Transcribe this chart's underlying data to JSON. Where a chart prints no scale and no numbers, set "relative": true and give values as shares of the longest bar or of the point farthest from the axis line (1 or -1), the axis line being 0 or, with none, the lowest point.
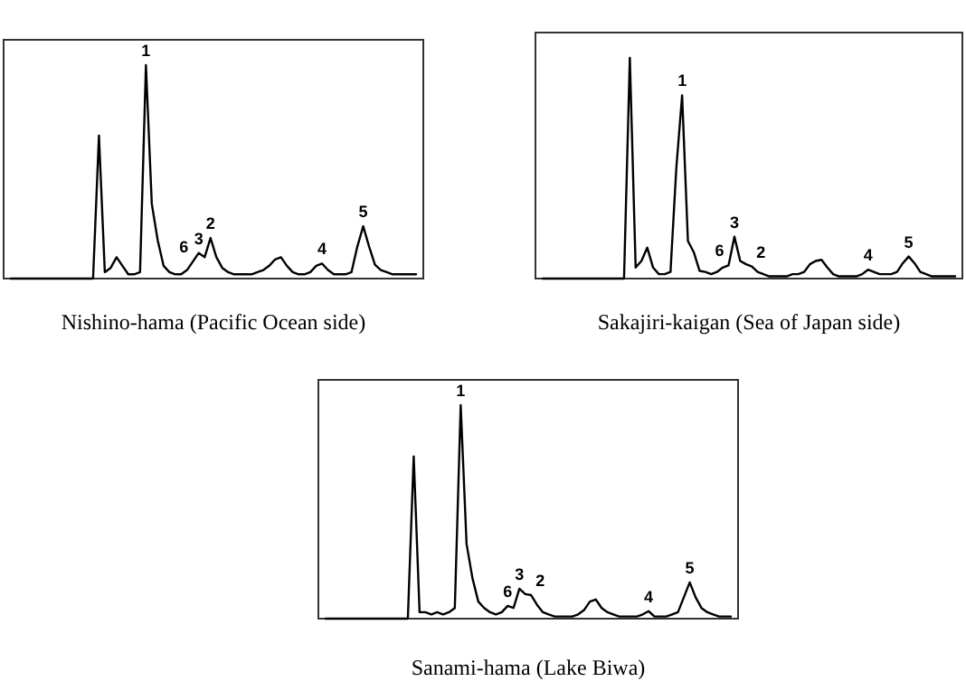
{
  "chart_data": [
    {
      "type": "line",
      "title": "Nishino-hama (Pacific Ocean side)",
      "relative": true,
      "categories": [
        null,
        null,
        null,
        null,
        null,
        null,
        null,
        null,
        null,
        null,
        null,
        null,
        null,
        null,
        null,
        null,
        null,
        null,
        null,
        null,
        null,
        null,
        null,
        null,
        null,
        null,
        null,
        null,
        null,
        null,
        null,
        null,
        null,
        null,
        null,
        null,
        null,
        null,
        null,
        null,
        null,
        null,
        null,
        null,
        null,
        null,
        null,
        null,
        null,
        null,
        null,
        null,
        null,
        null,
        null,
        null,
        null,
        null,
        null,
        null,
        null,
        null,
        null,
        null,
        null,
        null,
        null,
        null,
        null,
        null
      ],
      "series": [
        {
          "color": "#000000",
          "values": [
            0,
            0,
            0,
            0,
            0,
            0,
            0,
            0,
            0,
            0,
            0,
            0,
            0,
            0,
            0,
            0.67,
            0.03,
            0.05,
            0.1,
            0.06,
            0.02,
            0.02,
            0.03,
            1,
            0.35,
            0.18,
            0.06,
            0.03,
            0.02,
            0.02,
            0.04,
            0.08,
            0.12,
            0.1,
            0.19,
            0.1,
            0.05,
            0.03,
            0.02,
            0.02,
            0.02,
            0.02,
            0.03,
            0.04,
            0.06,
            0.09,
            0.1,
            0.06,
            0.03,
            0.02,
            0.02,
            0.03,
            0.06,
            0.07,
            0.04,
            0.02,
            0.02,
            0.02,
            0.03,
            0.15,
            0.245,
            0.15,
            0.065,
            0.04,
            0.03,
            0.02,
            0.02,
            0.02,
            0.02,
            0.02
          ]
        }
      ],
      "annotations": [
        {
          "text": "1",
          "y": 1
        },
        {
          "text": "6",
          "y": 0.08
        },
        {
          "text": "3",
          "y": 0.12
        },
        {
          "text": "2",
          "y": 0.19
        },
        {
          "text": "4",
          "y": 0.07
        },
        {
          "text": "5",
          "y": 0.245
        }
      ]
    },
    {
      "type": "line",
      "title": "Sakajiri-kaigan (Sea of Japan side)",
      "relative": true,
      "categories": [
        null,
        null,
        null,
        null,
        null,
        null,
        null,
        null,
        null,
        null,
        null,
        null,
        null,
        null,
        null,
        null,
        null,
        null,
        null,
        null,
        null,
        null,
        null,
        null,
        null,
        null,
        null,
        null,
        null,
        null,
        null,
        null,
        null,
        null,
        null,
        null,
        null,
        null,
        null,
        null,
        null,
        null,
        null,
        null,
        null,
        null,
        null,
        null,
        null,
        null,
        null,
        null,
        null,
        null,
        null,
        null,
        null,
        null,
        null,
        null,
        null,
        null,
        null,
        null,
        null,
        null,
        null,
        null,
        null,
        null,
        null,
        null
      ],
      "series": [
        {
          "color": "#000000",
          "values": [
            0,
            0,
            0,
            0,
            0,
            0,
            0,
            0,
            0,
            0,
            0,
            0,
            0,
            0,
            0,
            1,
            0.05,
            0.08,
            0.14,
            0.05,
            0.02,
            0.02,
            0.03,
            0.5,
            0.83,
            0.17,
            0.12,
            0.035,
            0.03,
            0.02,
            0.03,
            0.05,
            0.06,
            0.19,
            0.08,
            0.065,
            0.055,
            0.03,
            0.02,
            0.01,
            0.01,
            0.01,
            0.01,
            0.02,
            0.02,
            0.03,
            0.065,
            0.08,
            0.085,
            0.05,
            0.02,
            0.01,
            0.01,
            0.01,
            0.01,
            0.02,
            0.04,
            0.03,
            0.02,
            0.02,
            0.02,
            0.03,
            0.07,
            0.1,
            0.07,
            0.03,
            0.02,
            0.01,
            0.01,
            0.01,
            0.01,
            0.01
          ]
        }
      ],
      "annotations": [
        {
          "text": "1",
          "y": 0.83
        },
        {
          "text": "6",
          "y": 0.06
        },
        {
          "text": "3",
          "y": 0.19
        },
        {
          "text": "2",
          "y": 0.055
        },
        {
          "text": "4",
          "y": 0.04
        },
        {
          "text": "5",
          "y": 0.1
        }
      ]
    },
    {
      "type": "line",
      "title": "Sanami-hama (Lake Biwa)",
      "relative": true,
      "categories": [
        null,
        null,
        null,
        null,
        null,
        null,
        null,
        null,
        null,
        null,
        null,
        null,
        null,
        null,
        null,
        null,
        null,
        null,
        null,
        null,
        null,
        null,
        null,
        null,
        null,
        null,
        null,
        null,
        null,
        null,
        null,
        null,
        null,
        null,
        null,
        null,
        null,
        null,
        null,
        null,
        null,
        null,
        null,
        null,
        null,
        null,
        null,
        null,
        null,
        null,
        null,
        null,
        null,
        null,
        null,
        null,
        null,
        null,
        null,
        null,
        null,
        null,
        null,
        null,
        null,
        null,
        null,
        null,
        null,
        null
      ],
      "series": [
        {
          "color": "#000000",
          "values": [
            0,
            0,
            0,
            0,
            0,
            0,
            0,
            0,
            0,
            0,
            0,
            0,
            0,
            0,
            0,
            0.76,
            0.03,
            0.03,
            0.02,
            0.03,
            0.02,
            0.03,
            0.05,
            1,
            0.35,
            0.19,
            0.08,
            0.05,
            0.03,
            0.02,
            0.03,
            0.06,
            0.05,
            0.14,
            0.115,
            0.11,
            0.065,
            0.03,
            0.02,
            0.01,
            0.01,
            0.01,
            0.01,
            0.02,
            0.04,
            0.08,
            0.09,
            0.05,
            0.03,
            0.02,
            0.01,
            0.01,
            0.01,
            0.01,
            0.02,
            0.035,
            0.01,
            0.01,
            0.01,
            0.02,
            0.03,
            0.1,
            0.17,
            0.1,
            0.05,
            0.03,
            0.02,
            0.01,
            0.01,
            0.01
          ]
        }
      ],
      "annotations": [
        {
          "text": "1",
          "y": 1
        },
        {
          "text": "6",
          "y": 0.06
        },
        {
          "text": "3",
          "y": 0.14
        },
        {
          "text": "2",
          "y": 0.11
        },
        {
          "text": "4",
          "y": 0.035
        },
        {
          "text": "5",
          "y": 0.17
        }
      ]
    }
  ]
}
